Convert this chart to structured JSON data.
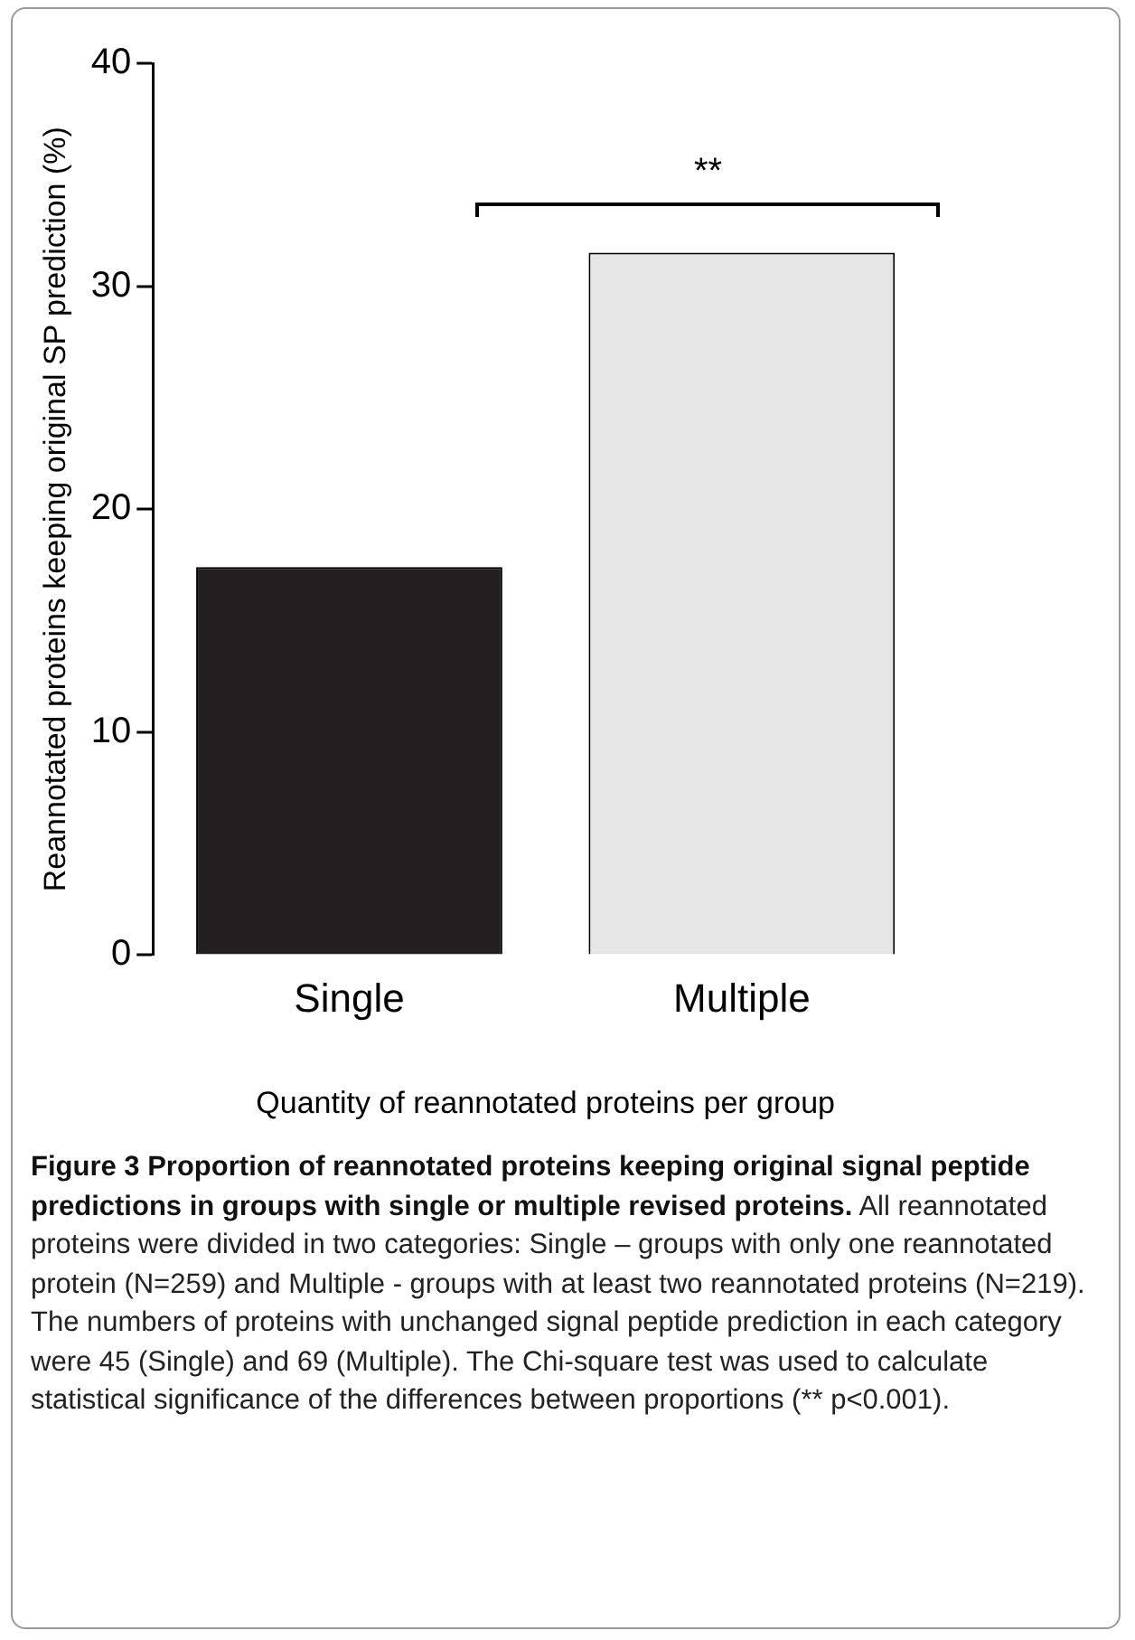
{
  "chart_data": {
    "type": "bar",
    "title": "Figure 3 Proportion of reannotated proteins keeping original signal peptide predictions in groups with single or multiple revised proteins.",
    "xlabel": "Quantity of reannotated proteins per group",
    "ylabel": "Reannotated proteins keeping original SP prediction (%)",
    "categories": [
      "Single",
      "Multiple"
    ],
    "values": [
      17.4,
      31.5
    ],
    "colors": [
      "#231f20",
      "#e6e6e6"
    ],
    "ylim": [
      0,
      40
    ],
    "yticks": [
      0,
      10,
      20,
      30,
      40
    ],
    "grid": false,
    "legend": false,
    "annotations": [
      "**",
      "All reannotated proteins were divided in two categories: Single – groups with only one reannotated protein (N=259) and Multiple - groups with at least two reannotated proteins (N=219). The numbers of proteins with unchanged signal peptide prediction in each category were 45 (Single) and 69 (Multiple). The Chi-square test was used to calculate statistical significance of the differences between proportions (** p<0.001)."
    ]
  }
}
